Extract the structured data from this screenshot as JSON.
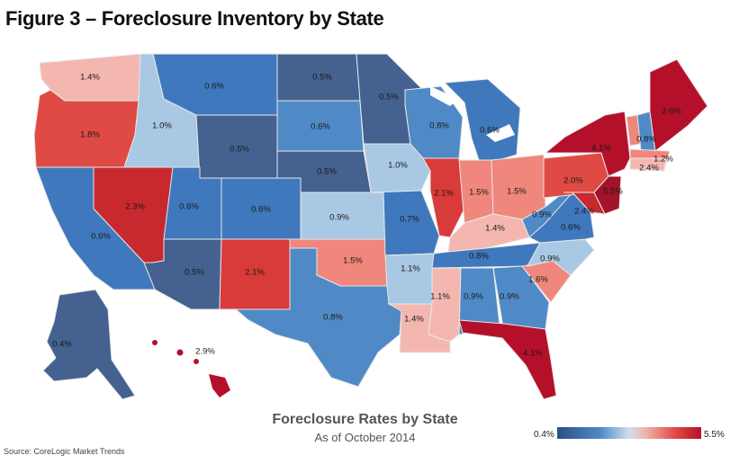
{
  "title": "Figure 3 – Foreclosure Inventory by State",
  "map_title": "Foreclosure Rates by State",
  "map_subtitle": "As of October 2014",
  "source": "Source: CoreLogic Market Trends",
  "legend": {
    "min_label": "0.4%",
    "max_label": "5.5%"
  },
  "colors": {
    "dark_blue": "#44618f",
    "blue": "#3f78bc",
    "light_blue": "#a9c8e3",
    "pale_red": "#f4b7b0",
    "salmon": "#f0877c",
    "red": "#e04a44",
    "dark_red": "#b5102a"
  },
  "states": {
    "WA": "1.4%",
    "OR": "1.8%",
    "CA": "0.6%",
    "NV": "2.3%",
    "ID": "1.0%",
    "MT": "0.6%",
    "WY": "0.5%",
    "UT": "0.6%",
    "AZ": "0.5%",
    "CO": "0.6%",
    "NM": "2.1%",
    "ND": "0.5%",
    "SD": "0.6%",
    "NE": "0.5%",
    "KS": "0.9%",
    "OK": "1.5%",
    "TX": "0.8%",
    "MN": "0.5%",
    "IA": "1.0%",
    "MO": "0.7%",
    "AR": "1.1%",
    "LA": "1.4%",
    "WI": "0.8%",
    "IL": "2.1%",
    "MI": "0.6%",
    "IN": "1.5%",
    "OH": "1.5%",
    "KY": "1.4%",
    "TN": "0.8%",
    "MS": "1.1%",
    "AL": "0.9%",
    "GA": "0.9%",
    "FL": "4.1%",
    "SC": "1.6%",
    "NC": "0.9%",
    "VA": "0.6%",
    "WV": "0.9%",
    "PA": "2.0%",
    "NY": "4.1%",
    "NJ": "5.5%",
    "MD": "2.4%",
    "VT": "0.8%",
    "NH": "1.2%",
    "MA": "2.4%",
    "ME": "2.6%",
    "AK": "0.4%",
    "HI": "2.9%"
  }
}
